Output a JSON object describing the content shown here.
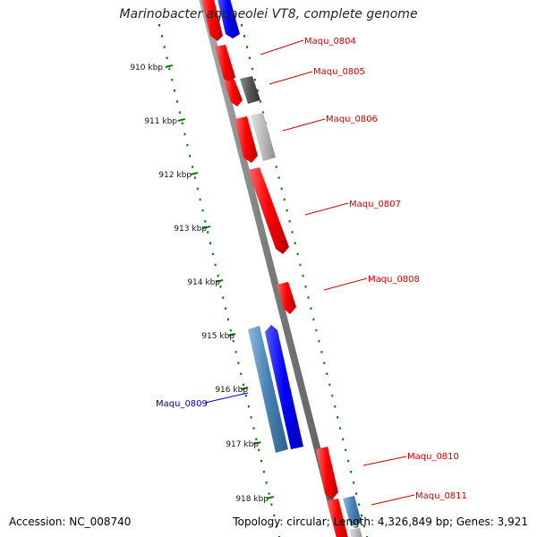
{
  "title": "Marinobacter aquaeolei VT8, complete genome",
  "footer": {
    "accession_label": "Accession:",
    "accession": "NC_008740",
    "topology_label": "Topology:",
    "topology": "circular",
    "length_label": "Length:",
    "length": "4,326,849 bp",
    "genes_label": "Genes:",
    "genes": "3,921"
  },
  "colors": {
    "forward_gene": "#ff0000",
    "reverse_gene": "#0000ff",
    "reverse_gene_alt": "#4682b4",
    "gene_dark_gray": "#555555",
    "gene_light_gray": "#bbbbbb",
    "scale_dots": "#0a7a0a",
    "backbone": "#888888",
    "label_forward": "#cc0000",
    "label_reverse": "#0000aa"
  },
  "scale_labels": [
    {
      "kbp": 910,
      "text": "910 kbp"
    },
    {
      "kbp": 911,
      "text": "911 kbp"
    },
    {
      "kbp": 912,
      "text": "912 kbp"
    },
    {
      "kbp": 913,
      "text": "913 kbp"
    },
    {
      "kbp": 914,
      "text": "914 kbp"
    },
    {
      "kbp": 915,
      "text": "915 kbp"
    },
    {
      "kbp": 916,
      "text": "916 kbp"
    },
    {
      "kbp": 917,
      "text": "917 kbp"
    },
    {
      "kbp": 918,
      "text": "918 kbp"
    }
  ],
  "gene_labels": [
    {
      "name": "Maqu_0804",
      "strand": "forward"
    },
    {
      "name": "Maqu_0805",
      "strand": "forward"
    },
    {
      "name": "Maqu_0806",
      "strand": "forward"
    },
    {
      "name": "Maqu_0807",
      "strand": "forward"
    },
    {
      "name": "Maqu_0808",
      "strand": "forward"
    },
    {
      "name": "Maqu_0809",
      "strand": "reverse"
    },
    {
      "name": "Maqu_0810",
      "strand": "forward"
    },
    {
      "name": "Maqu_0811",
      "strand": "forward"
    }
  ]
}
